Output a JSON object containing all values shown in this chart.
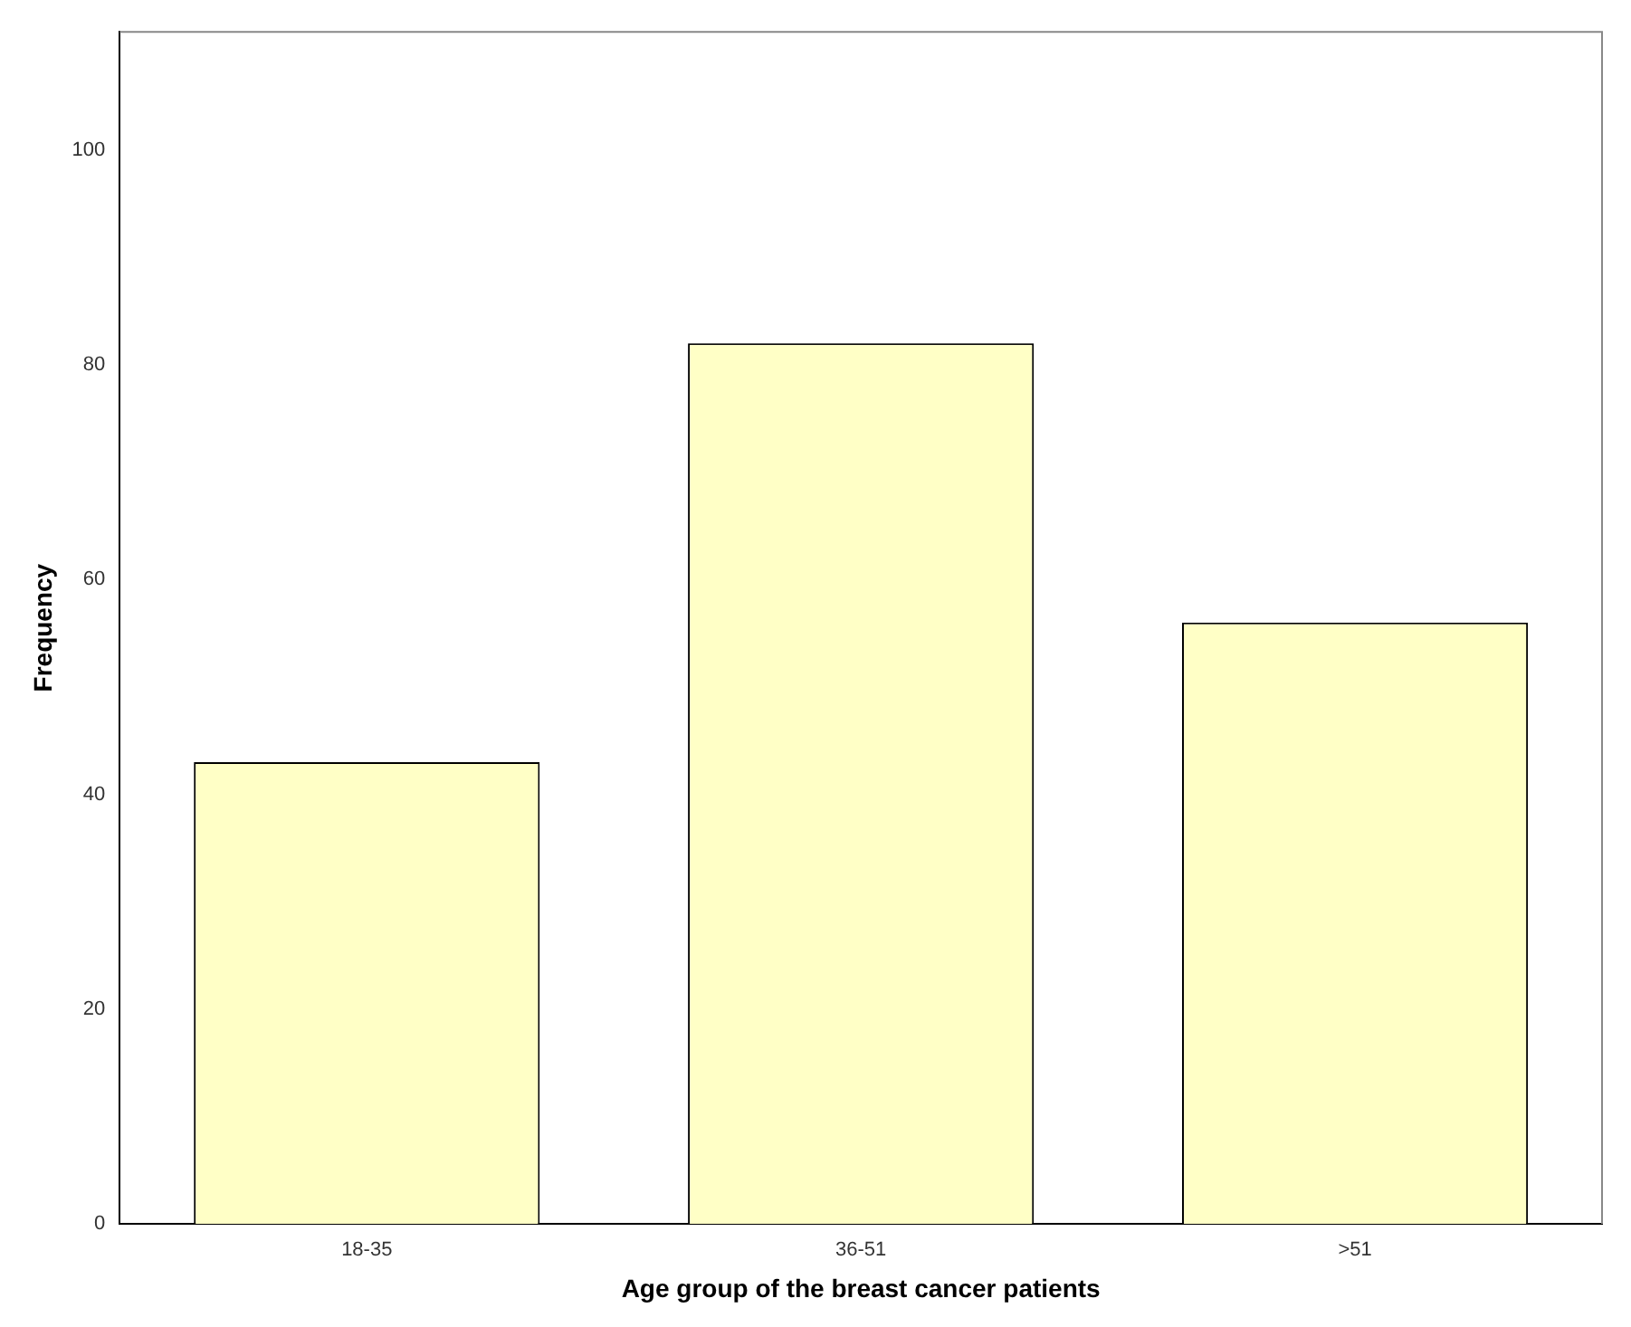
{
  "chart_data": {
    "type": "bar",
    "xlabel": "Age group of the breast cancer patients",
    "ylabel": "Frequency",
    "categories": [
      "18-35",
      "36-51",
      ">51"
    ],
    "values": [
      43,
      82,
      56
    ],
    "color": "#ffffc6",
    "ylim": [
      0,
      111
    ],
    "yticks": [
      0,
      20,
      40,
      60,
      80,
      100
    ],
    "grid": false,
    "legend": false
  }
}
